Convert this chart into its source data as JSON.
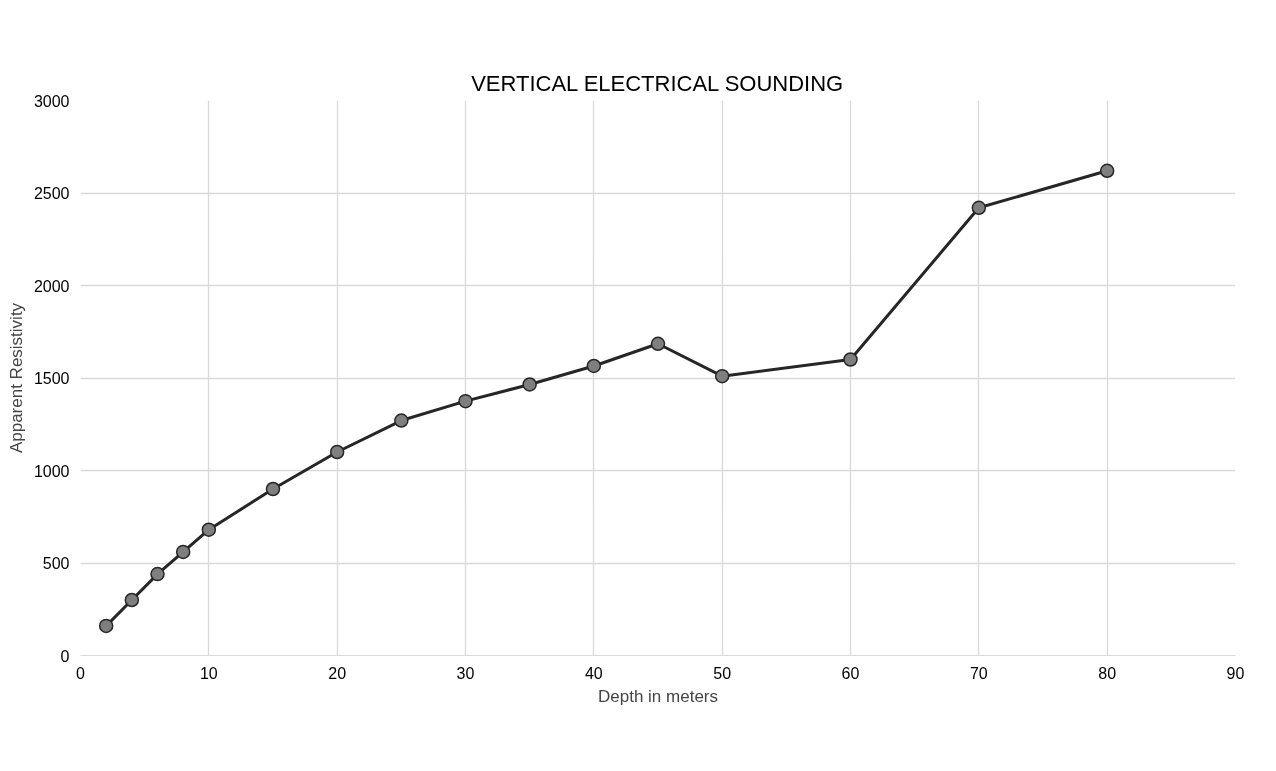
{
  "chart_data": {
    "type": "line",
    "title": "VERTICAL ELECTRICAL SOUNDING",
    "xlabel": "Depth in meters",
    "ylabel": "Apparent Resistivity",
    "x": [
      2,
      4,
      6,
      8,
      10,
      15,
      20,
      25,
      30,
      35,
      40,
      45,
      50,
      60,
      70,
      80
    ],
    "series": [
      {
        "color": "#262626",
        "values": [
          160,
          300,
          440,
          560,
          680,
          900,
          1100,
          1270,
          1375,
          1465,
          1565,
          1685,
          1510,
          1600,
          2420,
          2620
        ]
      }
    ],
    "xlim": [
      0,
      90
    ],
    "xticks": [
      0,
      10,
      20,
      30,
      40,
      50,
      60,
      70,
      80,
      90
    ],
    "ylim": [
      0,
      3000
    ],
    "yticks": [
      0,
      500,
      1000,
      1500,
      2000,
      2500,
      3000
    ],
    "grid": true,
    "marker": "circle",
    "line_style": "solid"
  }
}
